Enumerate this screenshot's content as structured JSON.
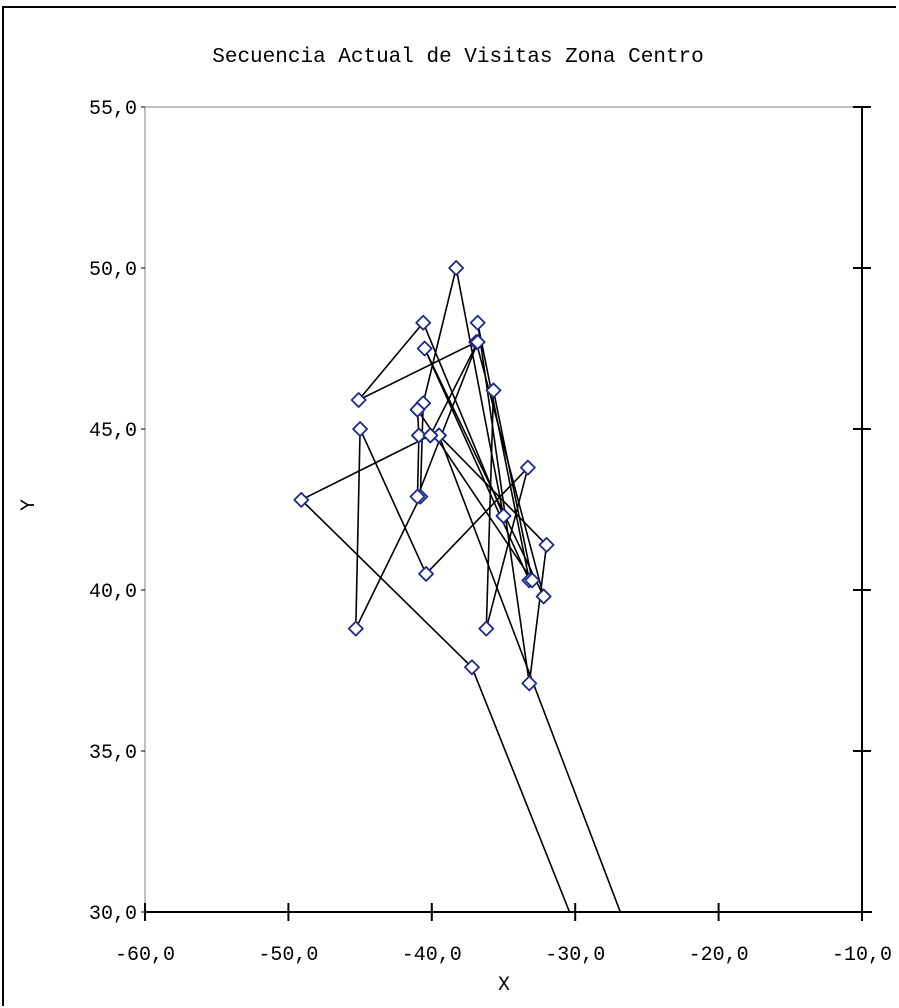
{
  "chart_data": {
    "type": "scatter",
    "title": "Secuencia Actual de Visitas Zona Centro",
    "xlabel": "X",
    "ylabel": "Y",
    "xlim": [
      -60,
      -10
    ],
    "ylim": [
      30,
      55
    ],
    "xticks": [
      -60,
      -50,
      -40,
      -30,
      -20,
      -10
    ],
    "yticks": [
      30,
      35,
      40,
      45,
      50,
      55
    ],
    "xtick_labels": [
      "-60,0",
      "-50,0",
      "-40,0",
      "-30,0",
      "-20,0",
      "-10,0"
    ],
    "ytick_labels": [
      "30,0",
      "35,0",
      "40,0",
      "45,0",
      "50,0",
      "55,0"
    ],
    "grid": false,
    "line_color": "#000000",
    "marker_color": "#1f2a8a",
    "marker": "diamond",
    "series": [
      {
        "values": [
          [
            -26.0,
            29.0
          ],
          [
            -39.5,
            44.8
          ],
          [
            -32.0,
            41.4
          ],
          [
            -33.2,
            37.1
          ],
          [
            -36.8,
            48.3
          ],
          [
            -33.2,
            40.3
          ],
          [
            -40.5,
            47.5
          ],
          [
            -32.2,
            39.8
          ],
          [
            -36.9,
            47.7
          ],
          [
            -45.1,
            45.9
          ],
          [
            -40.6,
            48.3
          ],
          [
            -35.0,
            42.3
          ],
          [
            -38.3,
            50.0
          ],
          [
            -40.6,
            45.8
          ],
          [
            -40.8,
            42.9
          ],
          [
            -45.3,
            38.8
          ],
          [
            -45.0,
            45.0
          ],
          [
            -40.4,
            40.5
          ],
          [
            -33.3,
            43.8
          ],
          [
            -36.2,
            38.8
          ],
          [
            -35.7,
            46.2
          ],
          [
            -33.0,
            40.3
          ],
          [
            -41.0,
            45.6
          ],
          [
            -40.9,
            44.8
          ],
          [
            -41.0,
            42.9
          ],
          [
            -36.8,
            47.7
          ],
          [
            -40.1,
            44.8
          ],
          [
            -49.1,
            42.8
          ],
          [
            -37.2,
            37.6
          ],
          [
            -29.5,
            29.0
          ]
        ]
      }
    ]
  }
}
